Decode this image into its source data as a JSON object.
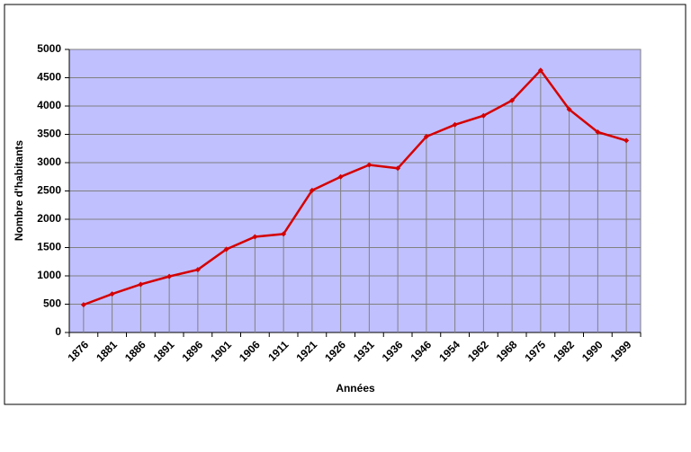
{
  "chart_data": {
    "type": "line",
    "x_label": "Années",
    "y_label": "Nombre d'habitants",
    "categories": [
      "1876",
      "1881",
      "1886",
      "1891",
      "1896",
      "1901",
      "1906",
      "1911",
      "1921",
      "1926",
      "1931",
      "1936",
      "1946",
      "1954",
      "1962",
      "1968",
      "1975",
      "1982",
      "1990",
      "1999"
    ],
    "series": [
      {
        "color": "#d40000",
        "values": [
          490,
          680,
          850,
          990,
          1110,
          1470,
          1690,
          1740,
          2510,
          2750,
          2960,
          2900,
          3460,
          3670,
          3830,
          4100,
          4630,
          3940,
          3540,
          3390
        ]
      }
    ],
    "ylim": [
      0,
      5000
    ],
    "yticks": [
      0,
      500,
      1000,
      1500,
      2000,
      2500,
      3000,
      3500,
      4000,
      4500,
      5000
    ],
    "grid": true,
    "drop_lines": true,
    "background": "#c0c0ff"
  }
}
